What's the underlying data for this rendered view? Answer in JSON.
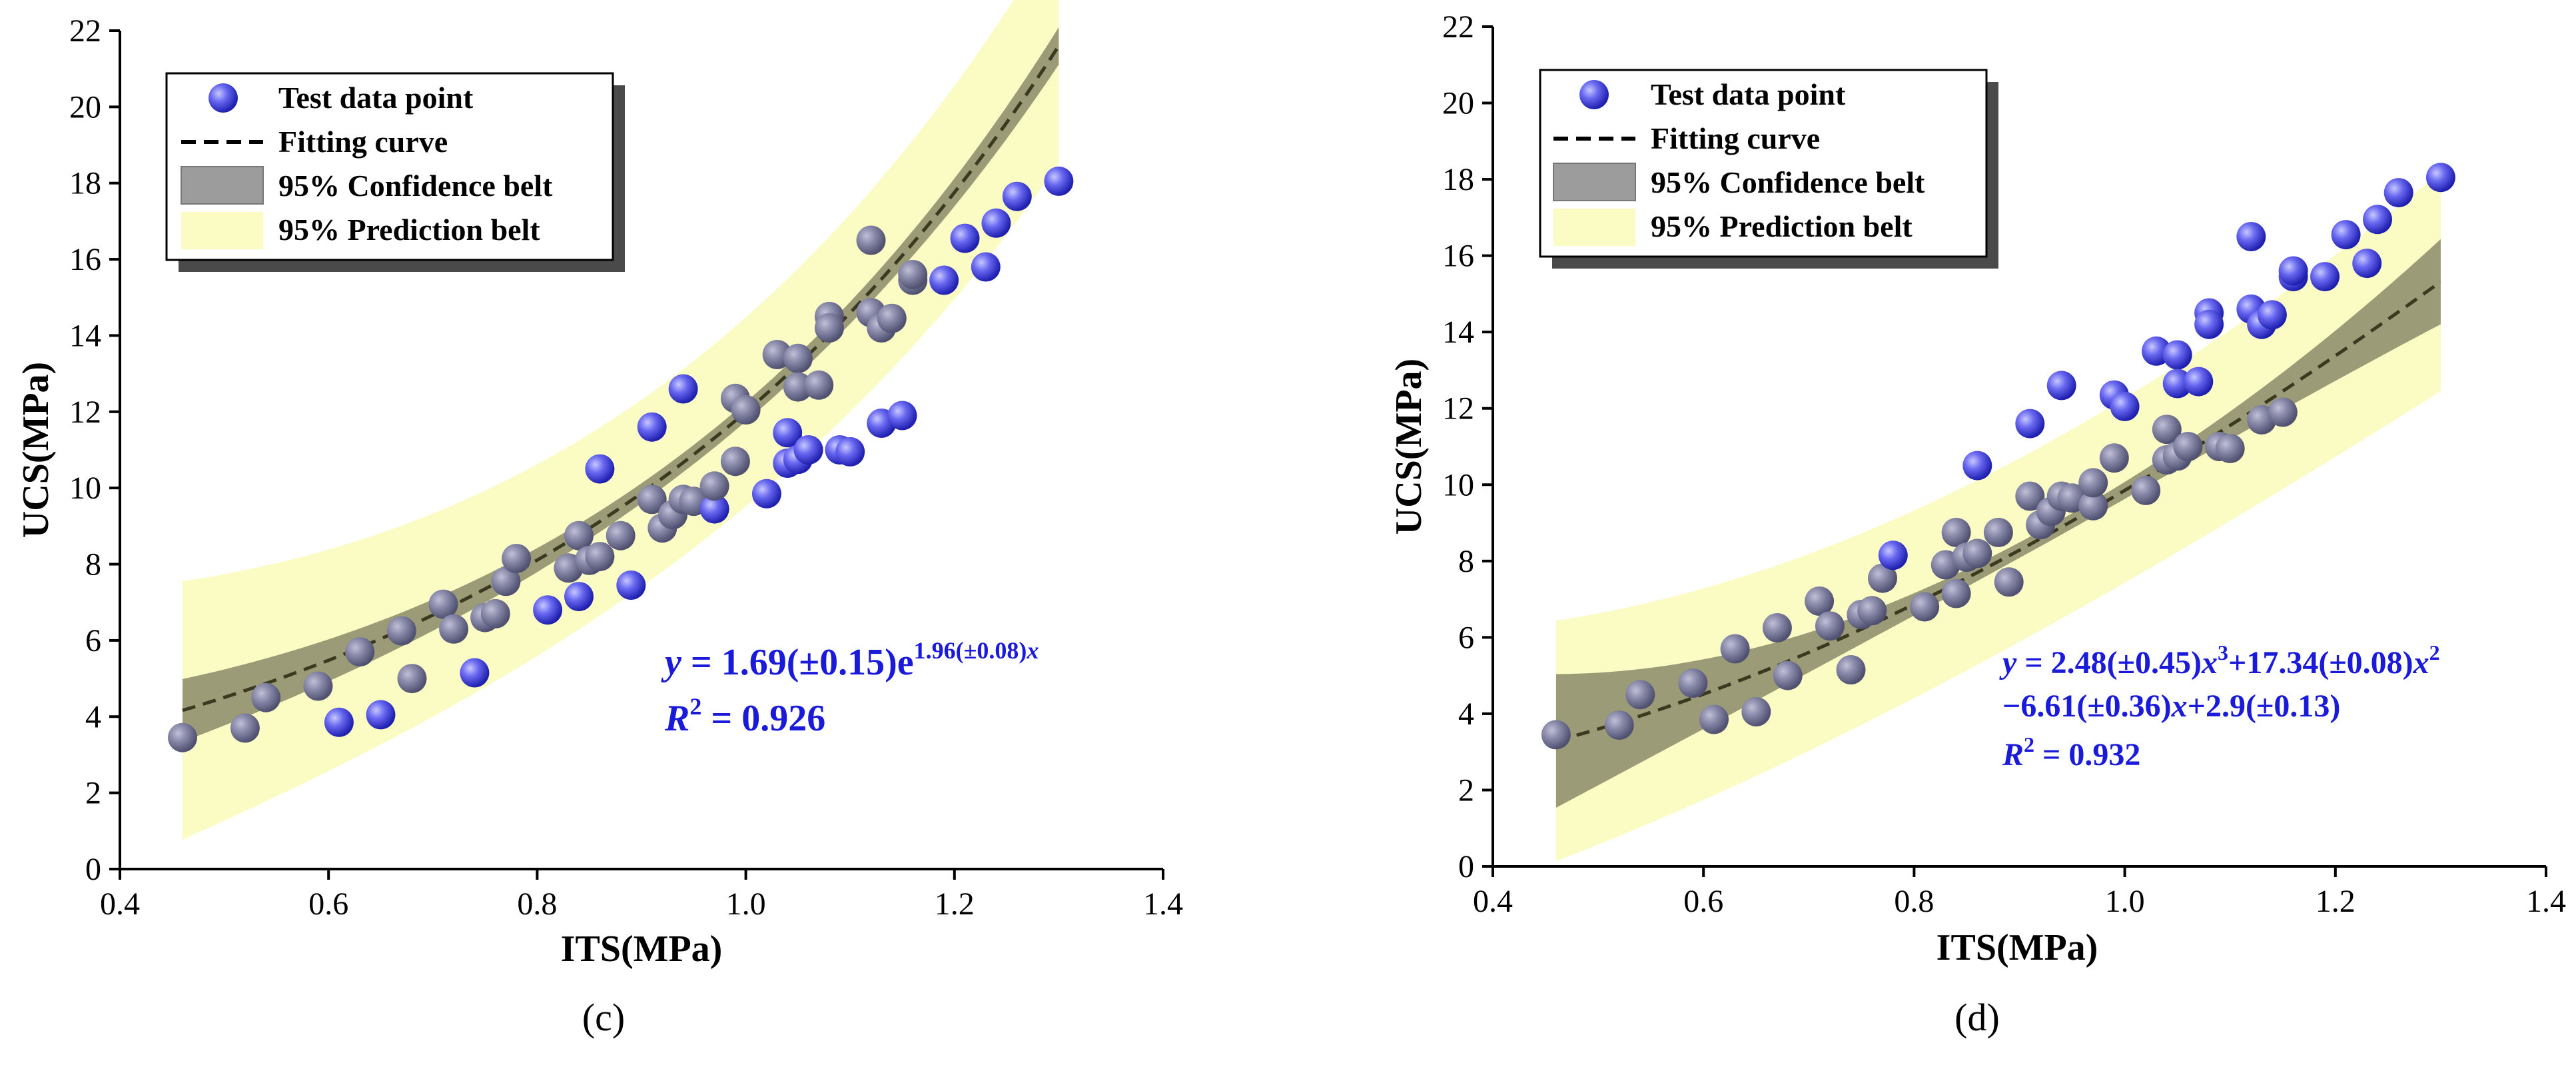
{
  "chart_data": [
    {
      "type": "scatter",
      "panel_label": "(c)",
      "xlabel": "ITS(MPa)",
      "ylabel": "UCS(MPa)",
      "xlim": [
        0.4,
        1.4
      ],
      "ylim": [
        0,
        22
      ],
      "x_ticks": [
        "0.4",
        "0.6",
        "0.8",
        "1.0",
        "1.2",
        "1.4"
      ],
      "y_ticks": [
        "0",
        "2",
        "4",
        "6",
        "8",
        "10",
        "12",
        "14",
        "16",
        "18",
        "20",
        "22"
      ],
      "legend": {
        "points": "Test data point",
        "curve": "Fitting curve",
        "confidence": "95% Confidence belt",
        "prediction": "95% Prediction belt"
      },
      "equation": {
        "line1_lhs": "y",
        "line1_main": " = 1.69(±0.15)e",
        "line1_sup": "1.96(±0.08)",
        "line1_sup_x": "x",
        "r2_label": "R",
        "r2_value": " = 0.926"
      },
      "model": "exponential",
      "coefficients": {
        "a": 1.69,
        "b": 1.96
      },
      "colors": {
        "points": "#5555ee",
        "curve": "#3a3a20",
        "confidence": "#8a8a6a",
        "prediction": "#fbfbc4"
      }
    },
    {
      "type": "scatter",
      "panel_label": "(d)",
      "xlabel": "ITS(MPa)",
      "ylabel": "UCS(MPa)",
      "xlim": [
        0.4,
        1.4
      ],
      "ylim": [
        0,
        22
      ],
      "x_ticks": [
        "0.4",
        "0.6",
        "0.8",
        "1.0",
        "1.2",
        "1.4"
      ],
      "y_ticks": [
        "0",
        "2",
        "4",
        "6",
        "8",
        "10",
        "12",
        "14",
        "16",
        "18",
        "20",
        "22"
      ],
      "legend": {
        "points": "Test data point",
        "curve": "Fitting curve",
        "confidence": "95% Confidence belt",
        "prediction": "95% Prediction belt"
      },
      "equation": {
        "line1_lhs": "y",
        "line1_a": " = 2.48(±0.45)",
        "line1_x3": "x",
        "line1_exp3": "3",
        "line1_b": "+17.34(±0.08)",
        "line1_x2": "x",
        "line1_exp2": "2",
        "line2_a": "−6.61(±0.36)",
        "line2_x": "x",
        "line2_b": "+2.9(±0.13)",
        "r2_label": "R",
        "r2_value": " = 0.932"
      },
      "model": "cubic",
      "colors": {
        "points": "#5555ee",
        "curve": "#3a3a20",
        "confidence": "#8a8a6a",
        "prediction": "#fbfbc4"
      }
    }
  ],
  "points": {
    "x": [
      0.46,
      0.52,
      0.54,
      0.59,
      0.61,
      0.63,
      0.65,
      0.67,
      0.68,
      0.71,
      0.72,
      0.74,
      0.75,
      0.76,
      0.77,
      0.78,
      0.81,
      0.83,
      0.84,
      0.84,
      0.85,
      0.86,
      0.86,
      0.88,
      0.89,
      0.91,
      0.91,
      0.92,
      0.93,
      0.94,
      0.94,
      0.95,
      0.97,
      0.97,
      0.99,
      0.99,
      1.0,
      1.02,
      1.03,
      1.04,
      1.04,
      1.05,
      1.05,
      1.05,
      1.06,
      1.07,
      1.08,
      1.08,
      1.09,
      1.1,
      1.12,
      1.12,
      1.13,
      1.13,
      1.14,
      1.15,
      1.16,
      1.16,
      1.19,
      1.21,
      1.23,
      1.24,
      1.26,
      1.3
    ],
    "y": [
      3.45,
      3.7,
      4.5,
      4.8,
      3.85,
      5.7,
      4.05,
      6.25,
      5.0,
      6.95,
      6.3,
      5.15,
      6.6,
      6.7,
      7.55,
      8.15,
      6.8,
      7.9,
      7.15,
      8.75,
      8.1,
      8.2,
      10.5,
      8.75,
      7.45,
      9.7,
      11.6,
      8.95,
      9.3,
      12.6,
      9.7,
      9.65,
      9.45,
      10.05,
      10.7,
      12.35,
      12.05,
      9.85,
      13.5,
      10.65,
      11.45,
      13.4,
      12.65,
      10.75,
      11.0,
      12.7,
      14.5,
      14.2,
      11.0,
      10.95,
      16.5,
      14.6,
      14.2,
      11.7,
      14.45,
      11.9,
      15.45,
      15.6,
      15.45,
      16.55,
      15.8,
      16.95,
      17.65,
      18.05
    ]
  }
}
